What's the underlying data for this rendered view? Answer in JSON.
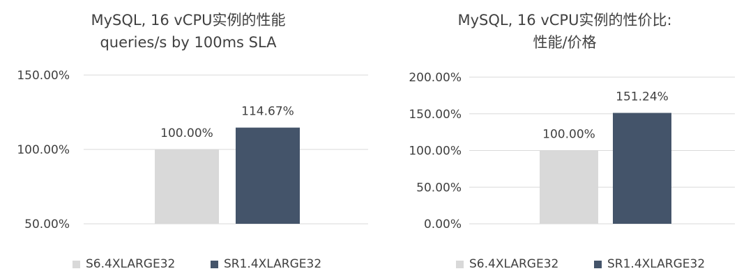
{
  "chart_data": [
    {
      "type": "bar",
      "title": "MySQL, 16 vCPU实例的性能",
      "subtitle": "queries/s by 100ms SLA",
      "categories": [
        ""
      ],
      "series": [
        {
          "name": "S6.4XLARGE32",
          "color": "#d9d9d9",
          "values": [
            100.0
          ],
          "label": "100.00%"
        },
        {
          "name": "SR1.4XLARGE32",
          "color": "#44546a",
          "values": [
            114.67
          ],
          "label": "114.67%"
        }
      ],
      "ylim": [
        50,
        150
      ],
      "yticks": [
        50,
        100,
        150
      ],
      "ytick_labels": [
        "50.00%",
        "100.00%",
        "150.00%"
      ],
      "grid": true,
      "legend": "bottom"
    },
    {
      "type": "bar",
      "title": "MySQL, 16 vCPU实例的性价比:",
      "subtitle": "性能/价格",
      "categories": [
        ""
      ],
      "series": [
        {
          "name": "S6.4XLARGE32",
          "color": "#d9d9d9",
          "values": [
            100.0
          ],
          "label": "100.00%"
        },
        {
          "name": "SR1.4XLARGE32",
          "color": "#44546a",
          "values": [
            151.24
          ],
          "label": "151.24%"
        }
      ],
      "ylim": [
        0,
        200
      ],
      "yticks": [
        0,
        50,
        100,
        150,
        200
      ],
      "ytick_labels": [
        "0.00%",
        "50.00%",
        "100.00%",
        "150.00%",
        "200.00%"
      ],
      "grid": true,
      "legend": "bottom"
    }
  ]
}
